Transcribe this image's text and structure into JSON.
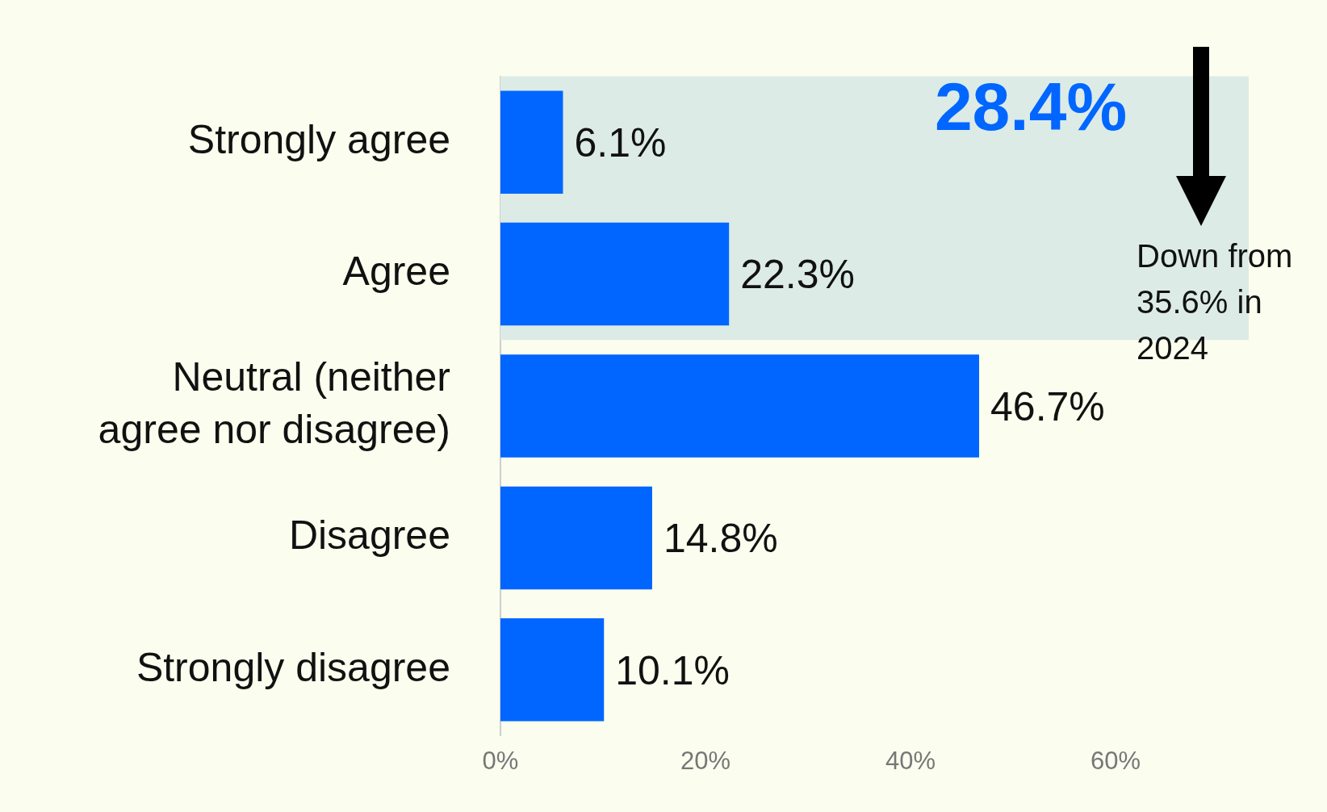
{
  "chart_data": {
    "type": "bar",
    "orientation": "horizontal",
    "categories": [
      "Strongly agree",
      "Agree",
      "Neutral (neither agree nor disagree)",
      "Disagree",
      "Strongly disagree"
    ],
    "values": [
      6.1,
      22.3,
      46.7,
      14.8,
      10.1
    ],
    "color": "#0066ff",
    "value_labels": [
      "6.1%",
      "22.3%",
      "46.7%",
      "14.8%",
      "10.1%"
    ],
    "xlim": [
      0,
      73
    ],
    "xticks": [
      {
        "value": 0,
        "label": "0%"
      },
      {
        "value": 20,
        "label": "20%"
      },
      {
        "value": 40,
        "label": "40%"
      },
      {
        "value": 60,
        "label": "60%"
      }
    ],
    "grid": false,
    "legend": false,
    "bands": [
      {
        "axis": "y",
        "from": "Strongly agree",
        "to": "Agree",
        "color": "#dcebe6"
      }
    ],
    "annotations": [
      "28.4%",
      "Down from 35.6% in 2024"
    ]
  }
}
